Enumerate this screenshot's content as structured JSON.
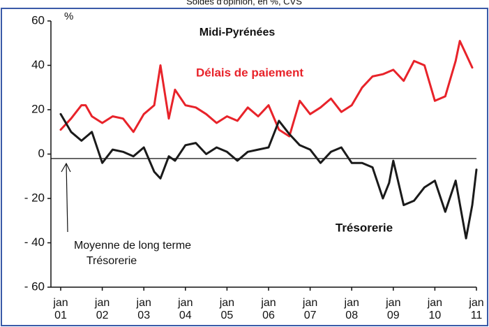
{
  "chart_data": {
    "type": "line",
    "subtitle": "Soldes d'opinion, en %, CVS",
    "title": "Midi-Pyrénées",
    "y_unit": "%",
    "ylim": [
      -60,
      60
    ],
    "yticks": [
      60,
      40,
      20,
      0,
      {
        "value": -20,
        "label": "- 20"
      },
      {
        "value": -40,
        "label": "- 40"
      },
      {
        "value": -60,
        "label": "- 60"
      }
    ],
    "xlim": [
      2001,
      2011
    ],
    "xticks": [
      {
        "value": 2001,
        "label": "jan 01"
      },
      {
        "value": 2002,
        "label": "jan 02"
      },
      {
        "value": 2003,
        "label": "jan 03"
      },
      {
        "value": 2004,
        "label": "jan 04"
      },
      {
        "value": 2005,
        "label": "jan 05"
      },
      {
        "value": 2006,
        "label": "jan 06"
      },
      {
        "value": 2007,
        "label": "jan 07"
      },
      {
        "value": 2008,
        "label": "jan 08"
      },
      {
        "value": 2009,
        "label": "jan 09"
      },
      {
        "value": 2010,
        "label": "jan 10"
      },
      {
        "value": 2011,
        "label": "jan 11"
      }
    ],
    "reference_line": {
      "value": -2,
      "label": "Moyenne de long terme Trésorerie"
    },
    "series": [
      {
        "name": "Délais de paiement",
        "color": "#e8232a",
        "x": [
          2001,
          2001.25,
          2001.5,
          2001.6,
          2001.75,
          2002,
          2002.25,
          2002.5,
          2002.75,
          2003,
          2003.25,
          2003.4,
          2003.6,
          2003.75,
          2004,
          2004.25,
          2004.5,
          2004.75,
          2005,
          2005.25,
          2005.5,
          2005.75,
          2006,
          2006.25,
          2006.5,
          2006.75,
          2007,
          2007.25,
          2007.5,
          2007.75,
          2008,
          2008.25,
          2008.5,
          2008.75,
          2009,
          2009.25,
          2009.5,
          2009.75,
          2010,
          2010.25,
          2010.5,
          2010.6,
          2010.75,
          2010.9
        ],
        "values": [
          11,
          16,
          22,
          22,
          17,
          14,
          17,
          16,
          10,
          18,
          22,
          40,
          16,
          29,
          22,
          21,
          18,
          14,
          17,
          15,
          21,
          17,
          22,
          11,
          8,
          24,
          18,
          21,
          25,
          19,
          22,
          30,
          35,
          36,
          38,
          33,
          42,
          40,
          24,
          26,
          42,
          51,
          45,
          39
        ]
      },
      {
        "name": "Trésorerie",
        "color": "#1a1a1a",
        "x": [
          2001,
          2001.25,
          2001.5,
          2001.75,
          2002,
          2002.25,
          2002.5,
          2002.75,
          2003,
          2003.25,
          2003.4,
          2003.6,
          2003.75,
          2004,
          2004.25,
          2004.5,
          2004.75,
          2005,
          2005.25,
          2005.5,
          2005.75,
          2006,
          2006.25,
          2006.5,
          2006.75,
          2007,
          2007.25,
          2007.5,
          2007.75,
          2008,
          2008.25,
          2008.5,
          2008.75,
          2008.9,
          2009,
          2009.25,
          2009.5,
          2009.75,
          2010,
          2010.25,
          2010.5,
          2010.75,
          2010.9,
          2011
        ],
        "values": [
          18,
          10,
          6,
          10,
          -4,
          2,
          1,
          -1,
          3,
          -8,
          -11,
          -1,
          -3,
          4,
          5,
          0,
          3,
          1,
          -3,
          1,
          2,
          3,
          15,
          9,
          4,
          2,
          -4,
          1,
          3,
          -4,
          -4,
          -6,
          -20,
          -13,
          -3,
          -23,
          -21,
          -15,
          -12,
          -26,
          -12,
          -38,
          -23,
          -7
        ]
      }
    ]
  }
}
